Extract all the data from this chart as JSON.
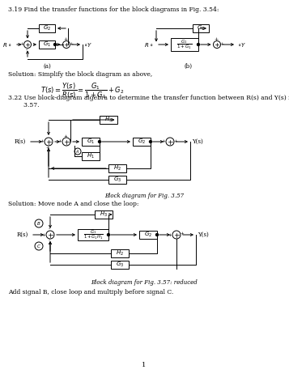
{
  "bg": "#ffffff",
  "title": "3.19 Find the transfer functions for the block diagrams in Fig. 3.54:",
  "sol1": "Solution: Simplify the block diagram as above,",
  "eq": "T(s) = \\dfrac{Y(s)}{R(s)} = \\dfrac{G_1}{1+G_1} + G_2",
  "prob2a": "3.22 Use block-diagram algebra to determine the transfer function between R(s) and Y(s) in Fig.",
  "prob2b": "        3.57.",
  "cap1": "Block diagram for Fig. 3.57",
  "sol2": "Solution: Move node A and close the loop:",
  "cap2": "Block diagram for Fig. 3.57: reduced",
  "footer": "Add signal B, close loop and multiply before signal C.",
  "pagenum": "1"
}
